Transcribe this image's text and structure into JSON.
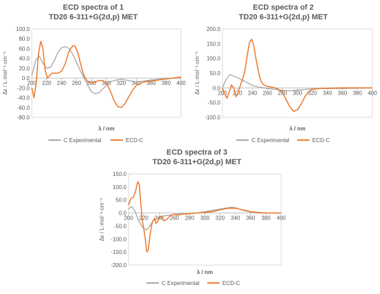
{
  "chart_data": [
    {
      "type": "line",
      "title_line1": "ECD spectra of 1",
      "title_line2": "TD20 6-311+G(2d,p) MET",
      "xlabel": "λ / nm",
      "ylabel": "Δε / L·mol⁻¹·cm⁻¹",
      "xlim": [
        200,
        400
      ],
      "ylim": [
        -80,
        100
      ],
      "xticks": [
        200,
        220,
        240,
        260,
        280,
        300,
        320,
        340,
        360,
        380,
        400
      ],
      "xtick_labels": [
        "200",
        "220",
        "240",
        "260",
        "280",
        "300",
        "320",
        "340",
        "360",
        "380",
        "400"
      ],
      "yticks": [
        100,
        80,
        60,
        40,
        20,
        0,
        -20,
        -40,
        -60,
        -80
      ],
      "ytick_labels": [
        "100.0",
        "80.0",
        "60.0",
        "40.0",
        "20.0",
        "0.0",
        "-20.0",
        "-40.0",
        "-60.0",
        "-80.0"
      ],
      "legend_position": "bottom",
      "series": [
        {
          "name": "C Experimental",
          "color": "#a5a5a5",
          "x": [
            200,
            205,
            210,
            215,
            220,
            225,
            230,
            235,
            240,
            245,
            250,
            255,
            260,
            265,
            270,
            275,
            280,
            285,
            290,
            295,
            300,
            305,
            310,
            320,
            330,
            340,
            350,
            360,
            370,
            380,
            390,
            400
          ],
          "y": [
            5,
            35,
            45,
            30,
            20,
            22,
            35,
            52,
            62,
            64,
            60,
            48,
            32,
            15,
            0,
            -15,
            -28,
            -32,
            -30,
            -22,
            -15,
            -8,
            -5,
            -2,
            -5,
            -8,
            -6,
            -4,
            -2,
            -1,
            0,
            0
          ]
        },
        {
          "name": "ECD-C",
          "color": "#ed7d31",
          "x": [
            200,
            203,
            206,
            209,
            212,
            215,
            218,
            221,
            224,
            227,
            230,
            235,
            240,
            245,
            250,
            255,
            258,
            262,
            266,
            270,
            275,
            280,
            285,
            290,
            295,
            300,
            305,
            310,
            315,
            320,
            325,
            330,
            335,
            340,
            350,
            360,
            370,
            380,
            390,
            400
          ],
          "y": [
            -20,
            -40,
            -10,
            50,
            75,
            60,
            15,
            0,
            5,
            10,
            10,
            10,
            14,
            30,
            55,
            66,
            65,
            50,
            25,
            5,
            -8,
            -10,
            -8,
            -5,
            -5,
            -10,
            -25,
            -45,
            -58,
            -60,
            -52,
            -38,
            -25,
            -15,
            -8,
            -6,
            -4,
            -2,
            0,
            2
          ]
        }
      ]
    },
    {
      "type": "line",
      "title_line1": "ECD spectra of 2",
      "title_line2": "TD20 6-311+G(2d,p) MET",
      "xlabel": "λ / nm",
      "ylabel": "Δε / L·mol⁻¹·cm⁻¹",
      "xlim": [
        200,
        400
      ],
      "ylim": [
        -100,
        200
      ],
      "xticks": [
        200,
        220,
        240,
        260,
        280,
        300,
        320,
        340,
        360,
        380,
        400
      ],
      "xtick_labels": [
        "200",
        "220",
        "240",
        "260",
        "280",
        "300",
        "320",
        "340",
        "360",
        "380",
        "400"
      ],
      "yticks": [
        200,
        150,
        100,
        50,
        0,
        -50,
        -100
      ],
      "ytick_labels": [
        "200.0",
        "150.0",
        "100.0",
        "50.0",
        "0.0",
        "-50.0",
        "-100.0"
      ],
      "legend_position": "bottom",
      "series": [
        {
          "name": "C Experimental",
          "color": "#a5a5a5",
          "x": [
            200,
            205,
            210,
            215,
            220,
            225,
            230,
            235,
            240,
            245,
            250,
            255,
            260,
            270,
            280,
            290,
            300,
            310,
            320,
            330,
            340,
            360,
            380,
            400
          ],
          "y": [
            0,
            30,
            45,
            40,
            35,
            28,
            22,
            15,
            8,
            5,
            2,
            0,
            -2,
            -5,
            -8,
            -10,
            -8,
            -5,
            -3,
            -2,
            -2,
            -2,
            -1,
            0
          ]
        },
        {
          "name": "ECD-C",
          "color": "#ed7d31",
          "x": [
            200,
            203,
            206,
            209,
            212,
            215,
            218,
            221,
            224,
            227,
            230,
            233,
            236,
            239,
            242,
            245,
            248,
            251,
            255,
            260,
            265,
            270,
            275,
            280,
            285,
            290,
            295,
            300,
            305,
            310,
            315,
            320,
            330,
            340,
            360,
            380,
            400
          ],
          "y": [
            0,
            -20,
            -35,
            -15,
            10,
            0,
            -30,
            -15,
            10,
            30,
            60,
            110,
            155,
            165,
            140,
            95,
            55,
            25,
            10,
            5,
            3,
            0,
            -5,
            -15,
            -40,
            -65,
            -80,
            -75,
            -55,
            -30,
            -12,
            -5,
            -2,
            -1,
            0,
            0,
            0
          ]
        }
      ]
    },
    {
      "type": "line",
      "title_line1": "ECD spectra of 3",
      "title_line2": "TD20 6-311+G(2d,p) MET",
      "xlabel": "λ / nm",
      "ylabel": "Δε / L·mol⁻¹·cm⁻¹",
      "xlim": [
        200,
        400
      ],
      "ylim": [
        -200,
        150
      ],
      "xticks": [
        200,
        220,
        240,
        260,
        280,
        300,
        320,
        340,
        360,
        380,
        400
      ],
      "xtick_labels": [
        "200",
        "220",
        "240",
        "260",
        "280",
        "300",
        "320",
        "340",
        "360",
        "380",
        "400"
      ],
      "yticks": [
        150,
        100,
        50,
        0,
        -50,
        -100,
        -150,
        -200
      ],
      "ytick_labels": [
        "150.0",
        "100.0",
        "50.0",
        "0.0",
        "-50.0",
        "-100.0",
        "-150.0",
        "-200.0"
      ],
      "legend_position": "bottom",
      "series": [
        {
          "name": "C Experimental",
          "color": "#a5a5a5",
          "x": [
            200,
            204,
            208,
            212,
            216,
            220,
            224,
            228,
            232,
            236,
            240,
            245,
            250,
            255,
            260,
            270,
            280,
            290,
            300,
            310,
            320,
            330,
            335,
            340,
            350,
            360,
            370,
            380,
            390,
            400
          ],
          "y": [
            15,
            25,
            10,
            -20,
            -45,
            -60,
            -65,
            -50,
            -30,
            -20,
            -15,
            -12,
            -10,
            -8,
            -5,
            -3,
            -2,
            0,
            5,
            10,
            15,
            20,
            22,
            20,
            10,
            3,
            0,
            0,
            0,
            0
          ]
        },
        {
          "name": "ECD-C",
          "color": "#ed7d31",
          "x": [
            200,
            203,
            206,
            209,
            212,
            214,
            216,
            218,
            220,
            222,
            224,
            226,
            228,
            230,
            232,
            234,
            236,
            238,
            240,
            243,
            246,
            250,
            255,
            260,
            265,
            270,
            280,
            290,
            300,
            310,
            320,
            330,
            340,
            350,
            360,
            370,
            380,
            390,
            400
          ],
          "y": [
            30,
            55,
            60,
            80,
            120,
            110,
            40,
            -30,
            -60,
            -100,
            -150,
            -140,
            -90,
            -50,
            -30,
            -20,
            -40,
            -35,
            -20,
            -12,
            -30,
            -25,
            -10,
            -5,
            -8,
            -5,
            -3,
            0,
            2,
            5,
            12,
            18,
            18,
            12,
            5,
            2,
            0,
            0,
            0
          ]
        }
      ]
    }
  ]
}
